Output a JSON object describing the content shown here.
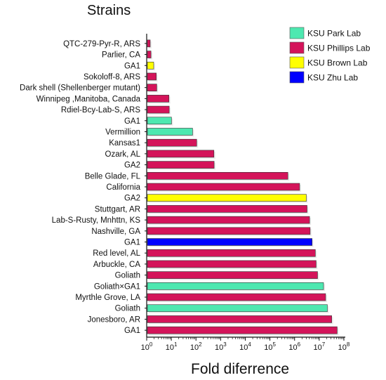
{
  "chart_data": {
    "type": "bar",
    "orientation": "horizontal",
    "title": "Strains",
    "xlabel": "Fold diferrence",
    "ylabel": "",
    "x_scale": "log",
    "xlim": [
      1,
      100000000
    ],
    "x_ticks": [
      {
        "value": 1,
        "base": "10",
        "exp": "0"
      },
      {
        "value": 10,
        "base": "10",
        "exp": "1"
      },
      {
        "value": 100,
        "base": "10",
        "exp": "2"
      },
      {
        "value": 1000,
        "base": "10",
        "exp": "3"
      },
      {
        "value": 10000,
        "base": "10",
        "exp": "4"
      },
      {
        "value": 100000,
        "base": "10",
        "exp": "5"
      },
      {
        "value": 1000000,
        "base": "10",
        "exp": "6"
      },
      {
        "value": 10000000,
        "base": "10",
        "exp": "7"
      },
      {
        "value": 100000000,
        "base": "10",
        "exp": "8"
      }
    ],
    "grid": false,
    "legend_position": "top-right",
    "legend": [
      {
        "name": "KSU Park Lab",
        "color": "#4de8b0"
      },
      {
        "name": "KSU Phillips Lab",
        "color": "#d4145a"
      },
      {
        "name": "KSU Brown Lab",
        "color": "#ffff00"
      },
      {
        "name": "KSU Zhu Lab",
        "color": "#0000ff"
      }
    ],
    "bars": [
      {
        "label": "QTC-279-Pyr-R, ARS",
        "value": 1.3,
        "lab": "KSU Phillips Lab",
        "color": "#d4145a"
      },
      {
        "label": "Parlier, CA",
        "value": 1.4,
        "lab": "KSU Phillips Lab",
        "color": "#d4145a"
      },
      {
        "label": "GA1",
        "value": 1.8,
        "lab": "KSU Brown Lab",
        "color": "#ffff00"
      },
      {
        "label": "Sokoloff-8, ARS",
        "value": 2.3,
        "lab": "KSU Phillips Lab",
        "color": "#d4145a"
      },
      {
        "label": "Dark shell (Shellenberger mutant)",
        "value": 2.4,
        "lab": "KSU Phillips Lab",
        "color": "#d4145a"
      },
      {
        "label": "Winnipeg ,Manitoba, Canada",
        "value": 7.5,
        "lab": "KSU Phillips Lab",
        "color": "#d4145a"
      },
      {
        "label": "Rdiel-Bcy-Lab-S, ARS",
        "value": 7.7,
        "lab": "KSU Phillips Lab",
        "color": "#d4145a"
      },
      {
        "label": "GA1",
        "value": 9.5,
        "lab": "KSU Park Lab",
        "color": "#4de8b0"
      },
      {
        "label": "Vermillion",
        "value": 68,
        "lab": "KSU Park Lab",
        "color": "#4de8b0"
      },
      {
        "label": "Kansas1",
        "value": 100,
        "lab": "KSU Phillips Lab",
        "color": "#d4145a"
      },
      {
        "label": "Ozark, AL",
        "value": 500,
        "lab": "KSU Phillips Lab",
        "color": "#d4145a"
      },
      {
        "label": "GA2",
        "value": 510,
        "lab": "KSU Phillips Lab",
        "color": "#d4145a"
      },
      {
        "label": "Belle Glade, FL",
        "value": 500000,
        "lab": "KSU Phillips Lab",
        "color": "#d4145a"
      },
      {
        "label": "California",
        "value": 1500000,
        "lab": "KSU Phillips Lab",
        "color": "#d4145a"
      },
      {
        "label": "GA2",
        "value": 2800000,
        "lab": "KSU Brown Lab",
        "color": "#ffff00"
      },
      {
        "label": "Stuttgart, AR",
        "value": 3000000,
        "lab": "KSU Phillips Lab",
        "color": "#d4145a"
      },
      {
        "label": "Lab-S-Rusty, Mnhttn, KS",
        "value": 3800000,
        "lab": "KSU Phillips Lab",
        "color": "#d4145a"
      },
      {
        "label": "Nashville, GA",
        "value": 4000000,
        "lab": "KSU Phillips Lab",
        "color": "#d4145a"
      },
      {
        "label": "GA1",
        "value": 4800000,
        "lab": "KSU Zhu Lab",
        "color": "#0000ff"
      },
      {
        "label": "Red level, AL",
        "value": 6500000,
        "lab": "KSU Phillips Lab",
        "color": "#d4145a"
      },
      {
        "label": "Arbuckle, CA",
        "value": 7000000,
        "lab": "KSU Phillips Lab",
        "color": "#d4145a"
      },
      {
        "label": "Goliath",
        "value": 8000000,
        "lab": "KSU Phillips Lab",
        "color": "#d4145a"
      },
      {
        "label": "Goliath×GA1",
        "value": 14000000,
        "lab": "KSU Park Lab",
        "color": "#4de8b0"
      },
      {
        "label": "Myrthle Grove, LA",
        "value": 17000000,
        "lab": "KSU Phillips Lab",
        "color": "#d4145a"
      },
      {
        "label": "Goliath",
        "value": 20000000,
        "lab": "KSU Park Lab",
        "color": "#4de8b0"
      },
      {
        "label": "Jonesboro, AR",
        "value": 30000000,
        "lab": "KSU Phillips Lab",
        "color": "#d4145a"
      },
      {
        "label": "GA1",
        "value": 50000000,
        "lab": "KSU Phillips Lab",
        "color": "#d4145a"
      }
    ]
  }
}
